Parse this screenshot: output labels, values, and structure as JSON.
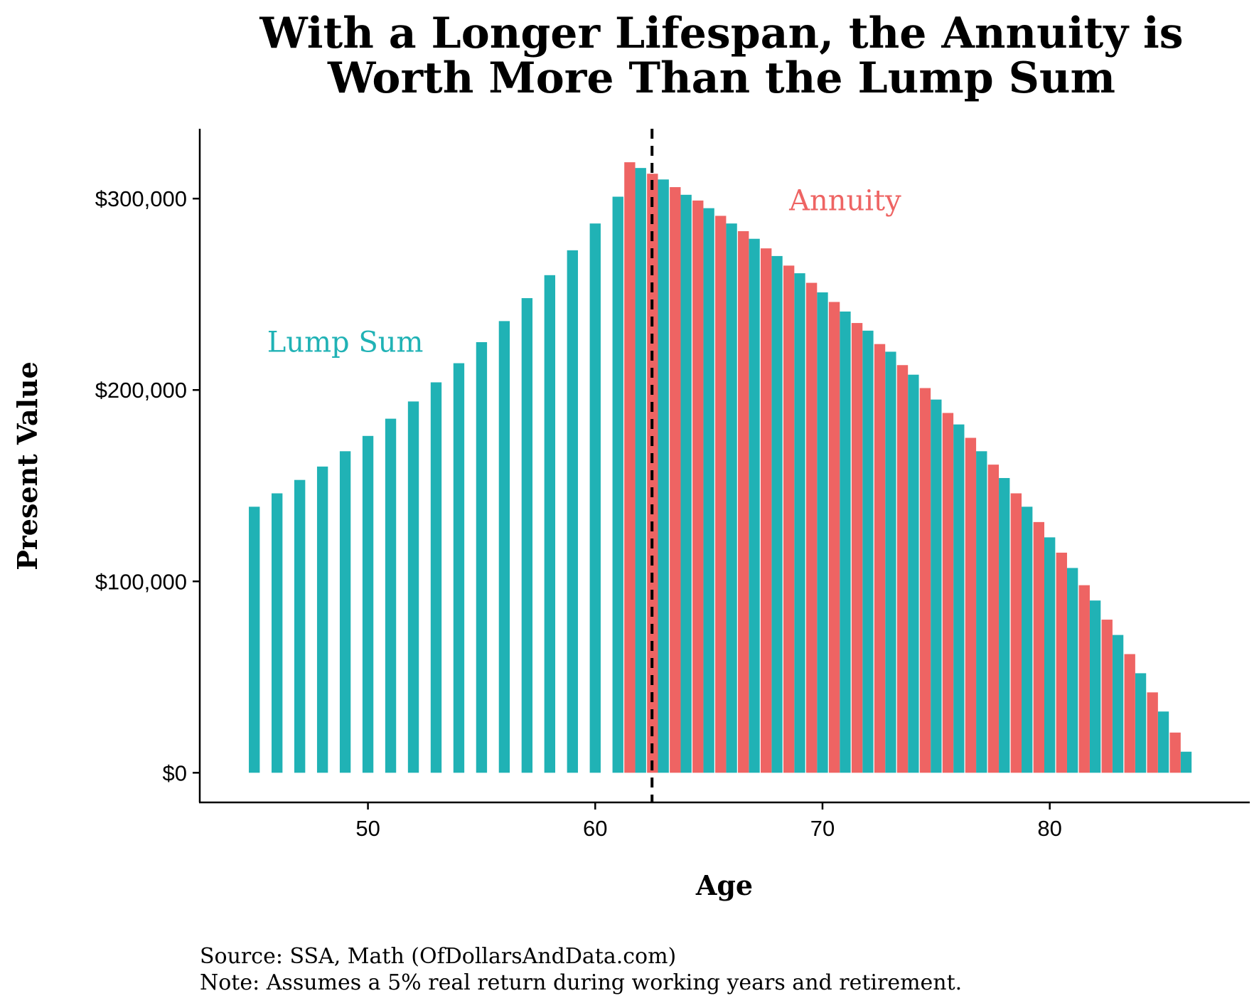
{
  "chart_data": {
    "type": "bar",
    "title_lines": [
      "With a Longer Lifespan, the Annuity is",
      "Worth More Than the Lump Sum"
    ],
    "xlabel": "Age",
    "ylabel": "Present Value",
    "xlim": [
      42.6,
      88.8
    ],
    "ylim": [
      -15500,
      336500
    ],
    "x_ticks": [
      {
        "value": 50,
        "label": "50"
      },
      {
        "value": 60,
        "label": "60"
      },
      {
        "value": 70,
        "label": "70"
      },
      {
        "value": 80,
        "label": "80"
      }
    ],
    "y_ticks": [
      {
        "value": 0,
        "label": "$0"
      },
      {
        "value": 100000,
        "label": "$100,000"
      },
      {
        "value": 200000,
        "label": "$200,000"
      },
      {
        "value": 300000,
        "label": "$300,000"
      }
    ],
    "vline": {
      "x": 62.5,
      "style": "dashed"
    },
    "grid": false,
    "colors": {
      "lump_sum": "#20B2B5",
      "annuity": "#EE6463"
    },
    "series": [
      {
        "name": "Lump Sum",
        "color": "#20B2B5",
        "label_at": {
          "x": 49.0,
          "y": 220000
        },
        "x": [
          45,
          46,
          47,
          48,
          49,
          50,
          51,
          52,
          53,
          54,
          55,
          56,
          57,
          58,
          59,
          60,
          61,
          62,
          63,
          64,
          65,
          66,
          67,
          68,
          69,
          70,
          71,
          72,
          73,
          74,
          75,
          76,
          77,
          78,
          79,
          80,
          81,
          82,
          83,
          84,
          85,
          86
        ],
        "values": [
          139000,
          146000,
          153000,
          160000,
          168000,
          176000,
          185000,
          194000,
          204000,
          214000,
          225000,
          236000,
          248000,
          260000,
          273000,
          287000,
          301000,
          316000,
          310000,
          302000,
          295000,
          287000,
          279000,
          270000,
          261000,
          251000,
          241000,
          231000,
          220000,
          208000,
          195000,
          182000,
          168000,
          154000,
          139000,
          123000,
          107000,
          90000,
          72000,
          52000,
          32000,
          11000
        ]
      },
      {
        "name": "Annuity",
        "color": "#EE6463",
        "label_at": {
          "x": 71.0,
          "y": 294000
        },
        "x": [
          62,
          63,
          64,
          65,
          66,
          67,
          68,
          69,
          70,
          71,
          72,
          73,
          74,
          75,
          76,
          77,
          78,
          79,
          80,
          81,
          82,
          83,
          84,
          85,
          86
        ],
        "values": [
          319000,
          313000,
          306000,
          299000,
          291000,
          283000,
          274000,
          265000,
          256000,
          246000,
          235000,
          224000,
          213000,
          201000,
          188000,
          175000,
          161000,
          146000,
          131000,
          115000,
          98000,
          80000,
          62000,
          42000,
          21000
        ]
      }
    ]
  },
  "caption": {
    "source": "Source:  SSA, Math (OfDollarsAndData.com)",
    "note": "Note: Assumes a 5% real return during working years and retirement."
  }
}
